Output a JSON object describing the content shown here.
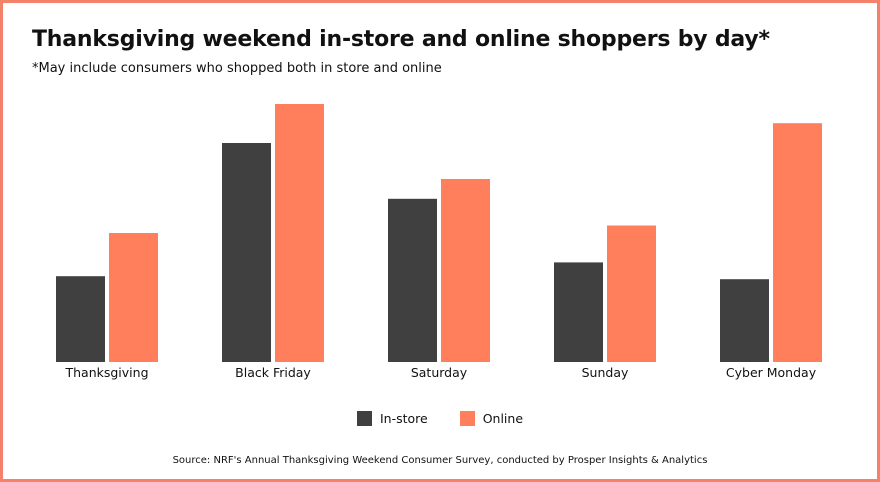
{
  "chart_data": {
    "type": "bar",
    "title": "Thanksgiving weekend in-store and online shoppers by day*",
    "subtitle": "*May include consumers who shopped both in store and online",
    "categories": [
      "Thanksgiving",
      "Black Friday",
      "Saturday",
      "Sunday",
      "Cyber Monday"
    ],
    "series": [
      {
        "name": "In-store",
        "values": [
          28.6,
          73.0,
          54.4,
          33.2,
          27.6
        ],
        "color": "#404040"
      },
      {
        "name": "Online",
        "values": [
          43.0,
          86.0,
          61.0,
          45.5,
          79.6
        ],
        "color": "#ff7f5c"
      }
    ],
    "ylim": [
      0,
      100
    ],
    "grid": false,
    "legend_position": "bottom",
    "source": "Source: NRF's Annual Thanksgiving Weekend Consumer Survey, conducted by Prosper Insights & Analytics"
  }
}
